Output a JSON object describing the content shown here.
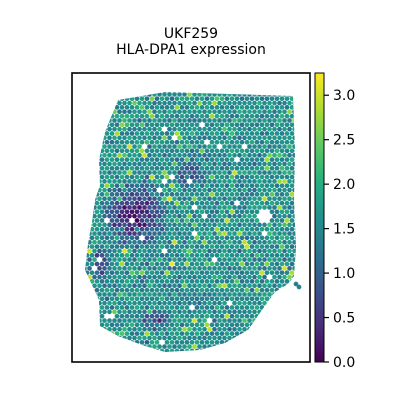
{
  "chart_data": {
    "type": "scatter",
    "subtype": "spatial-spot-plot",
    "title": "UKF259",
    "subtitle": "HLA-DPA1 expression",
    "xlabel": "",
    "ylabel": "",
    "axes_ticks": false,
    "grid": false,
    "colormap": "viridis",
    "colorbar": {
      "min": 0.0,
      "max": 3.25,
      "ticks": [
        0.0,
        0.5,
        1.0,
        1.5,
        2.0,
        2.5,
        3.0
      ],
      "tick_labels": [
        "0.0",
        "0.5",
        "1.0",
        "1.5",
        "2.0",
        "2.5",
        "3.0"
      ],
      "placement": "right"
    },
    "expression_summary": {
      "typical_value": 1.6,
      "low_region": "left-center of tissue, approx 0.2-0.6",
      "high_spots": "scattered, up to approx 2.8-3.2"
    }
  }
}
